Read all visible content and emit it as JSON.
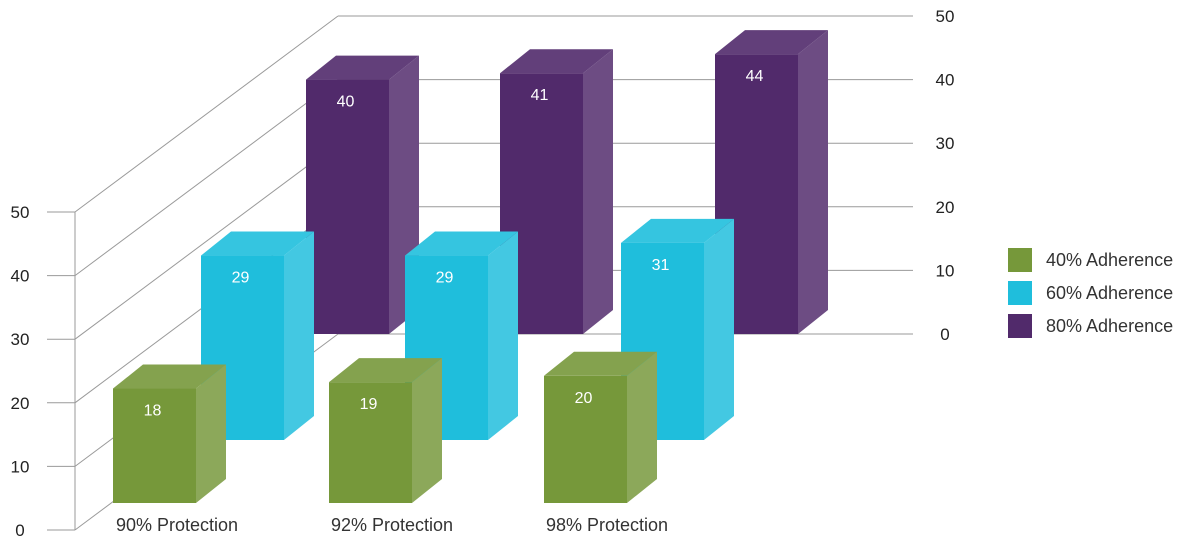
{
  "chart_data": {
    "type": "bar",
    "categories": [
      "90% Protection",
      "92% Protection",
      "98% Protection"
    ],
    "series": [
      {
        "name": "40% Adherence",
        "values": [
          18,
          19,
          20
        ],
        "color": "#76983a"
      },
      {
        "name": "60% Adherence",
        "values": [
          29,
          29,
          31
        ],
        "color": "#1fbedc"
      },
      {
        "name": "80% Adherence",
        "values": [
          40,
          41,
          44
        ],
        "color": "#512a6b"
      }
    ],
    "ylim": [
      0,
      50
    ],
    "y_ticks": [
      "0",
      "10",
      "20",
      "30",
      "40",
      "50"
    ],
    "grid": true,
    "legend_position": "right",
    "style": "3d"
  }
}
